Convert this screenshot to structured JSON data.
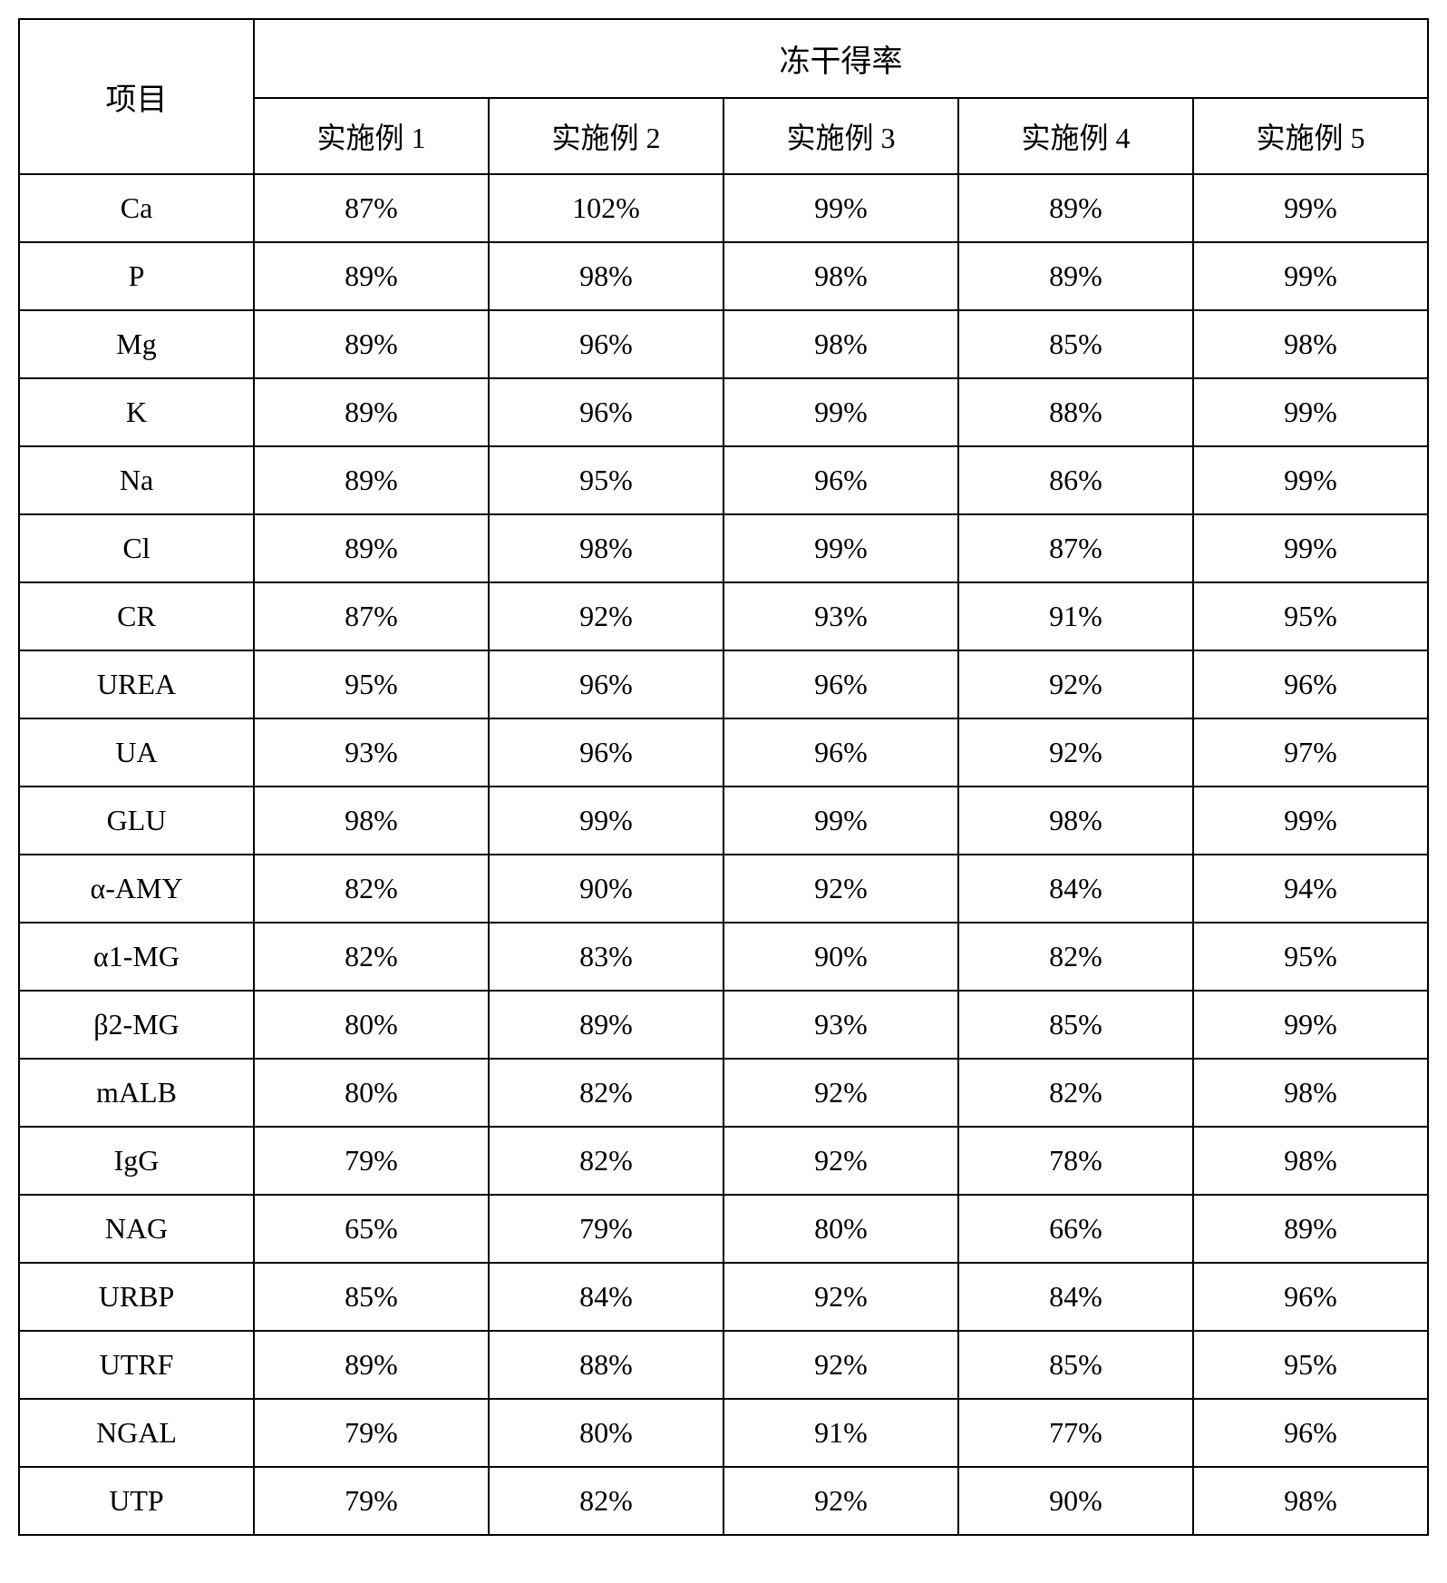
{
  "table": {
    "type": "table",
    "background_color": "#ffffff",
    "border_color": "#000000",
    "border_width": 2,
    "font_family": "Times New Roman, SimSun, serif",
    "header_fontsize": 34,
    "cell_fontsize": 32,
    "text_color": "#000000",
    "row_header_label": "项目",
    "merged_header_label": "冻干得率",
    "columns": [
      "实施例 1",
      "实施例 2",
      "实施例 3",
      "实施例 4",
      "实施例 5"
    ],
    "col_widths_pct": [
      16.67,
      16.67,
      16.67,
      16.67,
      16.67,
      16.67
    ],
    "rows": [
      {
        "label": "Ca",
        "values": [
          "87%",
          "102%",
          "99%",
          "89%",
          "99%"
        ]
      },
      {
        "label": "P",
        "values": [
          "89%",
          "98%",
          "98%",
          "89%",
          "99%"
        ]
      },
      {
        "label": "Mg",
        "values": [
          "89%",
          "96%",
          "98%",
          "85%",
          "98%"
        ]
      },
      {
        "label": "K",
        "values": [
          "89%",
          "96%",
          "99%",
          "88%",
          "99%"
        ]
      },
      {
        "label": "Na",
        "values": [
          "89%",
          "95%",
          "96%",
          "86%",
          "99%"
        ]
      },
      {
        "label": "Cl",
        "values": [
          "89%",
          "98%",
          "99%",
          "87%",
          "99%"
        ]
      },
      {
        "label": "CR",
        "values": [
          "87%",
          "92%",
          "93%",
          "91%",
          "95%"
        ]
      },
      {
        "label": "UREA",
        "values": [
          "95%",
          "96%",
          "96%",
          "92%",
          "96%"
        ]
      },
      {
        "label": "UA",
        "values": [
          "93%",
          "96%",
          "96%",
          "92%",
          "97%"
        ]
      },
      {
        "label": "GLU",
        "values": [
          "98%",
          "99%",
          "99%",
          "98%",
          "99%"
        ]
      },
      {
        "label": "α-AMY",
        "values": [
          "82%",
          "90%",
          "92%",
          "84%",
          "94%"
        ]
      },
      {
        "label": "α1-MG",
        "values": [
          "82%",
          "83%",
          "90%",
          "82%",
          "95%"
        ]
      },
      {
        "label": "β2-MG",
        "values": [
          "80%",
          "89%",
          "93%",
          "85%",
          "99%"
        ]
      },
      {
        "label": "mALB",
        "values": [
          "80%",
          "82%",
          "92%",
          "82%",
          "98%"
        ]
      },
      {
        "label": "IgG",
        "values": [
          "79%",
          "82%",
          "92%",
          "78%",
          "98%"
        ]
      },
      {
        "label": "NAG",
        "values": [
          "65%",
          "79%",
          "80%",
          "66%",
          "89%"
        ]
      },
      {
        "label": "URBP",
        "values": [
          "85%",
          "84%",
          "92%",
          "84%",
          "96%"
        ]
      },
      {
        "label": "UTRF",
        "values": [
          "89%",
          "88%",
          "92%",
          "85%",
          "95%"
        ]
      },
      {
        "label": "NGAL",
        "values": [
          "79%",
          "80%",
          "91%",
          "77%",
          "96%"
        ]
      },
      {
        "label": "UTP",
        "values": [
          "79%",
          "82%",
          "92%",
          "90%",
          "98%"
        ]
      }
    ]
  }
}
